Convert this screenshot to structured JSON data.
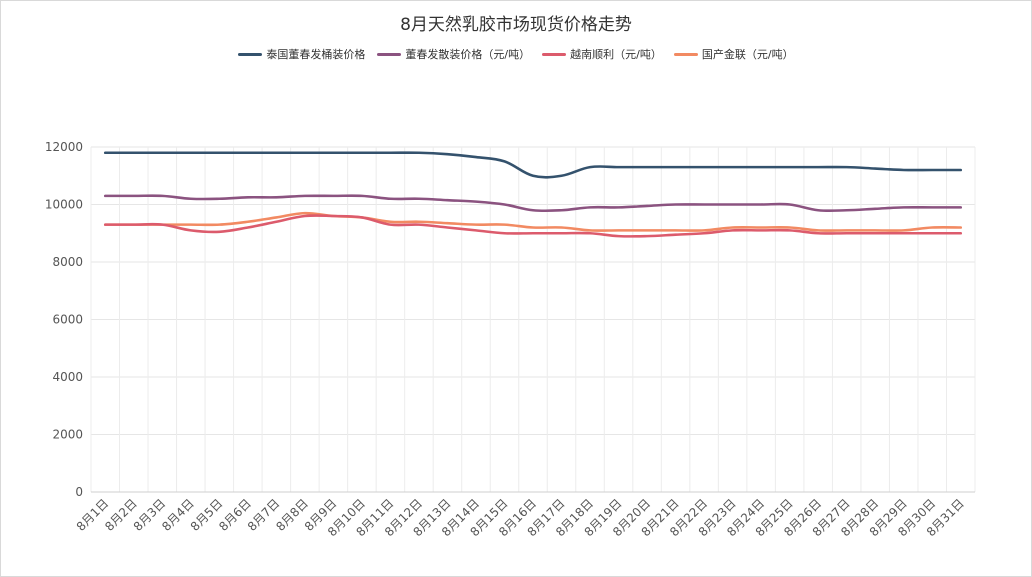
{
  "chart_data": {
    "type": "line",
    "title": "8月天然乳胶市场现货价格走势",
    "categories": [
      "8月1日",
      "8月2日",
      "8月3日",
      "8月4日",
      "8月5日",
      "8月6日",
      "8月7日",
      "8月8日",
      "8月9日",
      "8月10日",
      "8月11日",
      "8月12日",
      "8月13日",
      "8月14日",
      "8月15日",
      "8月16日",
      "8月17日",
      "8月18日",
      "8月19日",
      "8月20日",
      "8月21日",
      "8月22日",
      "8月23日",
      "8月24日",
      "8月25日",
      "8月26日",
      "8月27日",
      "8月28日",
      "8月29日",
      "8月30日",
      "8月31日"
    ],
    "ylim": [
      0,
      12000
    ],
    "yticks": [
      0,
      2000,
      4000,
      6000,
      8000,
      10000,
      12000
    ],
    "grid": true,
    "legend_position": "top",
    "series": [
      {
        "name": "泰国董春发桶装价格",
        "color": "#34526d",
        "values": [
          11800,
          11800,
          11800,
          11800,
          11800,
          11800,
          11800,
          11800,
          11800,
          11800,
          11800,
          11800,
          11750,
          11650,
          11500,
          11000,
          11000,
          11300,
          11300,
          11300,
          11300,
          11300,
          11300,
          11300,
          11300,
          11300,
          11300,
          11250,
          11200,
          11200,
          11200
        ]
      },
      {
        "name": "董春发散装价格（元/吨）",
        "color": "#8b5380",
        "values": [
          10300,
          10300,
          10300,
          10200,
          10200,
          10250,
          10250,
          10300,
          10300,
          10300,
          10200,
          10200,
          10150,
          10100,
          10000,
          9800,
          9800,
          9900,
          9900,
          9950,
          10000,
          10000,
          10000,
          10000,
          10000,
          9800,
          9800,
          9850,
          9900,
          9900,
          9900
        ]
      },
      {
        "name": "越南顺利（元/吨）",
        "color": "#dc5b6c",
        "values": [
          9300,
          9300,
          9300,
          9100,
          9050,
          9200,
          9400,
          9600,
          9600,
          9550,
          9300,
          9300,
          9200,
          9100,
          9000,
          9000,
          9000,
          9000,
          8900,
          8900,
          8950,
          9000,
          9100,
          9100,
          9100,
          9000,
          9000,
          9000,
          9000,
          9000,
          9000
        ]
      },
      {
        "name": "国产金联（元/吨）",
        "color": "#f28a62",
        "values": [
          9300,
          9300,
          9300,
          9300,
          9300,
          9400,
          9550,
          9700,
          9600,
          9550,
          9400,
          9400,
          9350,
          9300,
          9300,
          9200,
          9200,
          9100,
          9100,
          9100,
          9100,
          9100,
          9200,
          9200,
          9200,
          9100,
          9100,
          9100,
          9100,
          9200,
          9200
        ]
      }
    ]
  }
}
